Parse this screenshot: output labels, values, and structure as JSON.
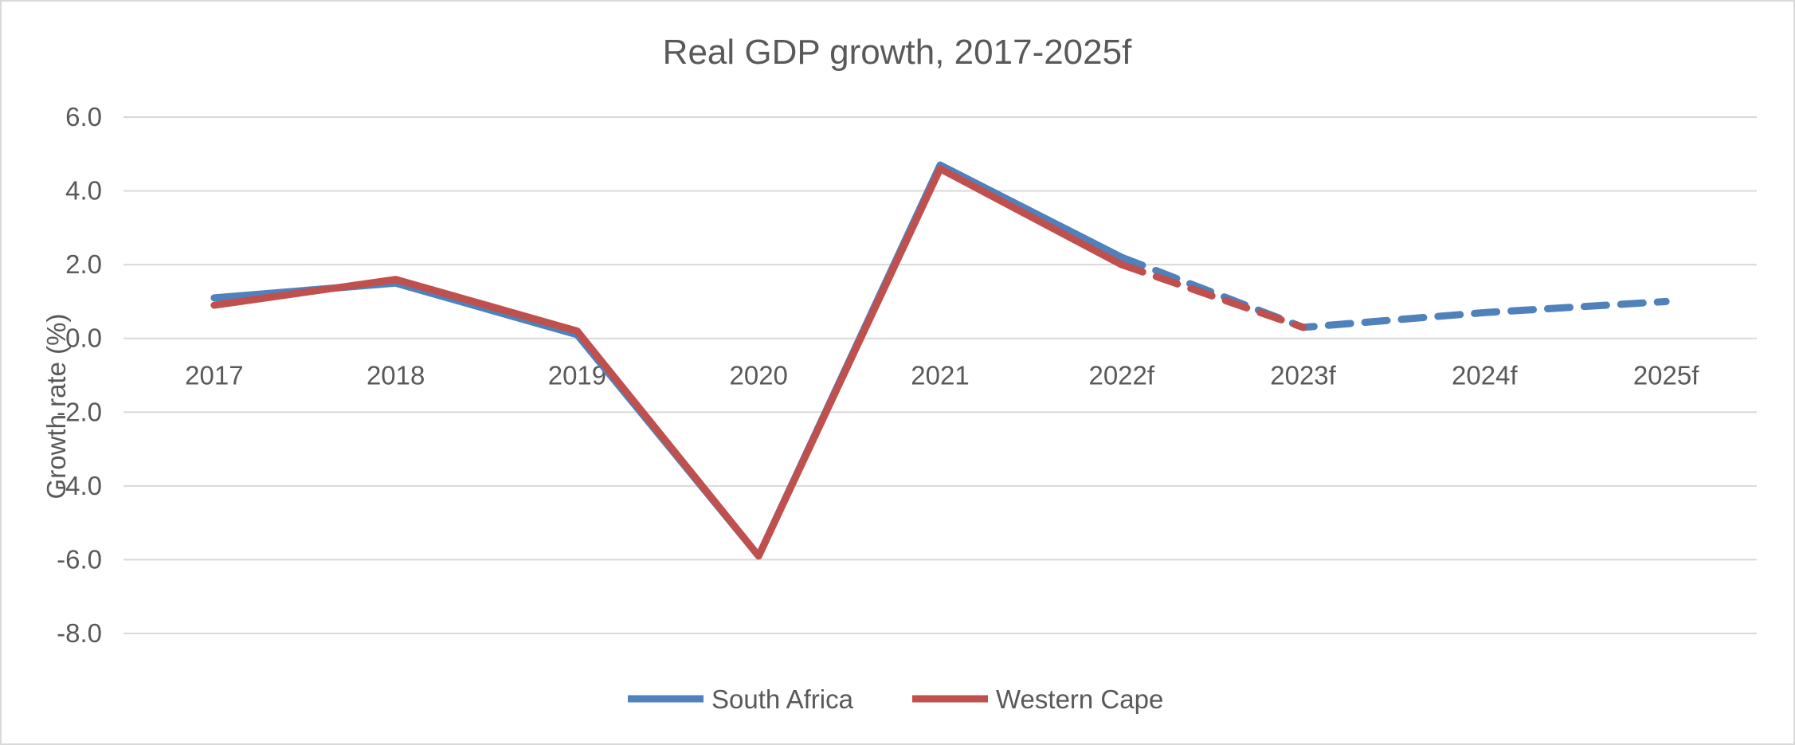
{
  "chart_data": {
    "type": "line",
    "title": "Real GDP growth, 2017-2025f",
    "xlabel": "",
    "ylabel": "Growth rate (%)",
    "categories": [
      "2017",
      "2018",
      "2019",
      "2020",
      "2021",
      "2022f",
      "2023f",
      "2024f",
      "2025f"
    ],
    "ylim": [
      -8.0,
      6.0
    ],
    "yticks": [
      "6.0",
      "4.0",
      "2.0",
      "0.0",
      "-2.0",
      "-4.0",
      "-6.0",
      "-8.0"
    ],
    "grid": true,
    "legend_position": "bottom",
    "forecast_start_index": 5,
    "series": [
      {
        "name": "South Africa",
        "color": "#4f81bd",
        "values": [
          1.1,
          1.5,
          0.1,
          -5.9,
          4.7,
          2.2,
          0.3,
          0.7,
          1.0
        ]
      },
      {
        "name": "Western Cape",
        "color": "#c0504d",
        "values": [
          0.9,
          1.6,
          0.2,
          -5.9,
          4.6,
          2.0,
          0.3,
          null,
          null
        ]
      }
    ]
  }
}
